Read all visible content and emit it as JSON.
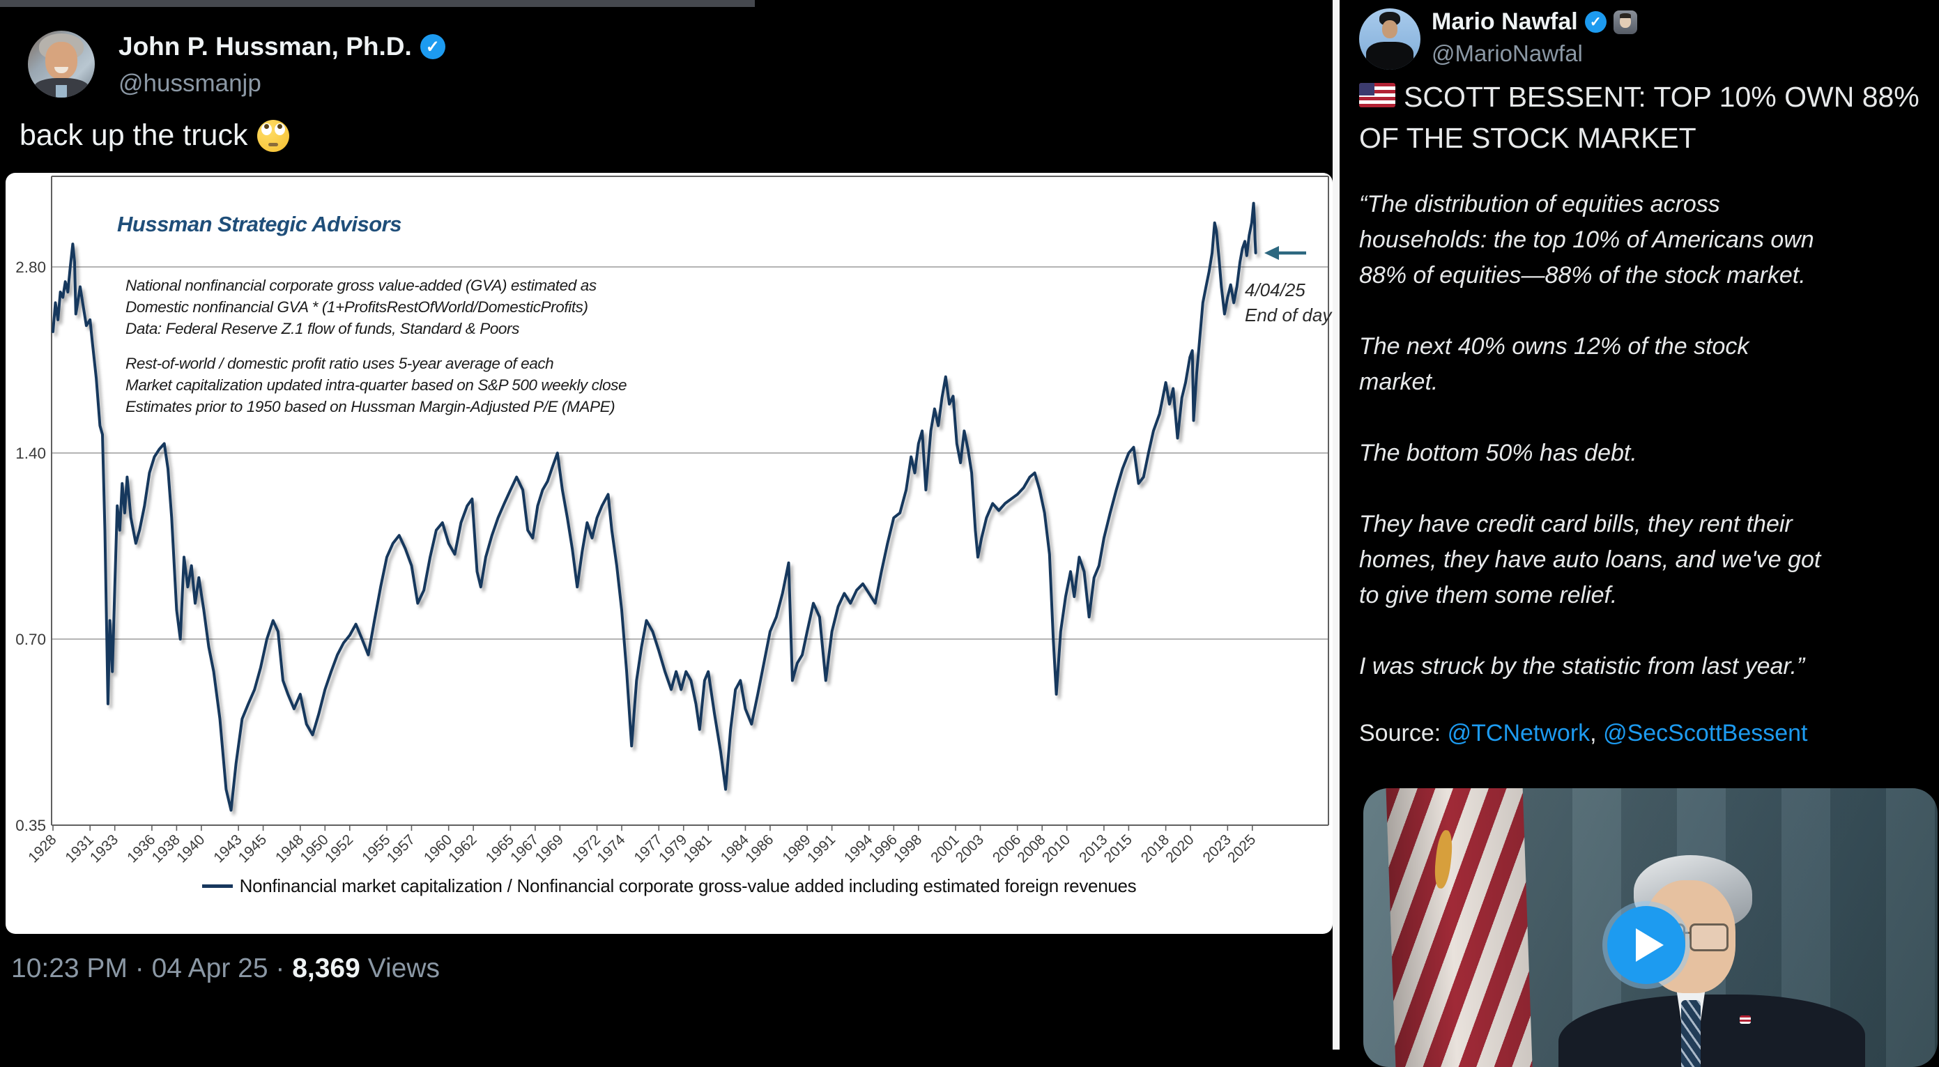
{
  "left_post": {
    "display_name": "John P. Hussman, Ph.D.",
    "handle": "@hussmanjp",
    "verified_mark": "✓",
    "text": "back up the truck",
    "emoji_name": "face-with-rolling-eyes",
    "meta": "10:23 PM · 04 Apr 25 · ",
    "views_count": "8,369",
    "views_label": " Views"
  },
  "chart": {
    "brand": "Hussman Strategic Advisors",
    "note1": "National nonfinancial corporate gross value-added (GVA) estimated as\nDomestic nonfinancial GVA * (1+ProfitsRestOfWorld/DomesticProfits)\nData: Federal Reserve Z.1 flow of funds, Standard & Poors",
    "note2": "Rest-of-world / domestic profit ratio uses 5-year average of each\nMarket capitalization updated intra-quarter based on S&P 500 weekly close\nEstimates prior to 1950 based on Hussman Margin-Adjusted P/E (MAPE)",
    "end_label": "4/04/25\nEnd of day",
    "legend": "Nonfinancial market capitalization / Nonfinancial corporate gross-value added including estimated foreign revenues",
    "chart_data": {
      "type": "line",
      "title": "Hussman Strategic Advisors",
      "xlabel": "",
      "ylabel": "",
      "scale": "log2",
      "grid": true,
      "legend_position": "bottom",
      "xlim": [
        1928,
        2025.4
      ],
      "ylim": [
        0.35,
        3.95
      ],
      "y_ticks": [
        2.8,
        1.4,
        0.7,
        0.35
      ],
      "y_tick_labels": [
        "2.80",
        "1.40",
        "0.70",
        "0.35"
      ],
      "x_ticks": [
        1928,
        1931,
        1933,
        1936,
        1938,
        1940,
        1943,
        1945,
        1948,
        1950,
        1952,
        1955,
        1957,
        1960,
        1962,
        1965,
        1967,
        1969,
        1972,
        1974,
        1977,
        1979,
        1981,
        1984,
        1986,
        1989,
        1991,
        1994,
        1996,
        1998,
        2001,
        2003,
        2006,
        2008,
        2010,
        2013,
        2015,
        2018,
        2020,
        2023,
        2025
      ],
      "annotation_date": "4/04/25",
      "annotation_note": "End of day",
      "series_name": "Nonfinancial market capitalization / Nonfinancial corporate gross-value added including estimated foreign revenues",
      "points": [
        [
          1928,
          2.2
        ],
        [
          1928.2,
          2.45
        ],
        [
          1928.4,
          2.3
        ],
        [
          1928.6,
          2.55
        ],
        [
          1928.8,
          2.5
        ],
        [
          1929,
          2.65
        ],
        [
          1929.2,
          2.55
        ],
        [
          1929.4,
          2.8
        ],
        [
          1929.6,
          3.05
        ],
        [
          1929.75,
          2.85
        ],
        [
          1929.85,
          2.35
        ],
        [
          1930,
          2.45
        ],
        [
          1930.2,
          2.6
        ],
        [
          1930.4,
          2.45
        ],
        [
          1930.7,
          2.25
        ],
        [
          1931,
          2.3
        ],
        [
          1931.2,
          2.1
        ],
        [
          1931.5,
          1.85
        ],
        [
          1931.8,
          1.55
        ],
        [
          1932,
          1.5
        ],
        [
          1932.2,
          1.05
        ],
        [
          1932.45,
          0.55
        ],
        [
          1932.6,
          0.75
        ],
        [
          1932.8,
          0.62
        ],
        [
          1933,
          0.85
        ],
        [
          1933.2,
          1.15
        ],
        [
          1933.4,
          1.05
        ],
        [
          1933.6,
          1.25
        ],
        [
          1933.8,
          1.12
        ],
        [
          1934,
          1.28
        ],
        [
          1934.3,
          1.1
        ],
        [
          1934.7,
          1.0
        ],
        [
          1935,
          1.05
        ],
        [
          1935.4,
          1.15
        ],
        [
          1935.8,
          1.3
        ],
        [
          1936.2,
          1.38
        ],
        [
          1936.6,
          1.42
        ],
        [
          1937,
          1.45
        ],
        [
          1937.3,
          1.32
        ],
        [
          1937.6,
          1.1
        ],
        [
          1938,
          0.78
        ],
        [
          1938.3,
          0.7
        ],
        [
          1938.6,
          0.95
        ],
        [
          1938.9,
          0.85
        ],
        [
          1939.2,
          0.92
        ],
        [
          1939.5,
          0.8
        ],
        [
          1939.8,
          0.88
        ],
        [
          1940.2,
          0.78
        ],
        [
          1940.6,
          0.68
        ],
        [
          1941,
          0.62
        ],
        [
          1941.5,
          0.52
        ],
        [
          1942,
          0.4
        ],
        [
          1942.4,
          0.37
        ],
        [
          1942.8,
          0.44
        ],
        [
          1943.3,
          0.52
        ],
        [
          1943.8,
          0.55
        ],
        [
          1944.3,
          0.58
        ],
        [
          1944.8,
          0.63
        ],
        [
          1945.3,
          0.7
        ],
        [
          1945.8,
          0.75
        ],
        [
          1946.2,
          0.72
        ],
        [
          1946.6,
          0.6
        ],
        [
          1947,
          0.57
        ],
        [
          1947.5,
          0.54
        ],
        [
          1948,
          0.57
        ],
        [
          1948.5,
          0.51
        ],
        [
          1949,
          0.49
        ],
        [
          1949.5,
          0.53
        ],
        [
          1950,
          0.58
        ],
        [
          1950.5,
          0.62
        ],
        [
          1951,
          0.66
        ],
        [
          1951.5,
          0.69
        ],
        [
          1952,
          0.71
        ],
        [
          1952.5,
          0.74
        ],
        [
          1953,
          0.7
        ],
        [
          1953.5,
          0.66
        ],
        [
          1954,
          0.75
        ],
        [
          1954.5,
          0.85
        ],
        [
          1955,
          0.95
        ],
        [
          1955.5,
          1.0
        ],
        [
          1956,
          1.03
        ],
        [
          1956.5,
          0.98
        ],
        [
          1957,
          0.92
        ],
        [
          1957.5,
          0.8
        ],
        [
          1958,
          0.84
        ],
        [
          1958.5,
          0.95
        ],
        [
          1959,
          1.05
        ],
        [
          1959.5,
          1.08
        ],
        [
          1960,
          1.0
        ],
        [
          1960.5,
          0.96
        ],
        [
          1961,
          1.08
        ],
        [
          1961.5,
          1.15
        ],
        [
          1961.9,
          1.18
        ],
        [
          1962.3,
          0.9
        ],
        [
          1962.6,
          0.85
        ],
        [
          1963,
          0.95
        ],
        [
          1963.5,
          1.03
        ],
        [
          1964,
          1.1
        ],
        [
          1964.5,
          1.16
        ],
        [
          1965,
          1.22
        ],
        [
          1965.5,
          1.28
        ],
        [
          1966,
          1.22
        ],
        [
          1966.4,
          1.05
        ],
        [
          1966.8,
          1.02
        ],
        [
          1967.2,
          1.15
        ],
        [
          1967.6,
          1.22
        ],
        [
          1968,
          1.26
        ],
        [
          1968.4,
          1.33
        ],
        [
          1968.8,
          1.4
        ],
        [
          1969.2,
          1.22
        ],
        [
          1969.6,
          1.1
        ],
        [
          1970,
          0.98
        ],
        [
          1970.4,
          0.85
        ],
        [
          1970.8,
          0.97
        ],
        [
          1971.2,
          1.08
        ],
        [
          1971.6,
          1.02
        ],
        [
          1972,
          1.1
        ],
        [
          1972.4,
          1.15
        ],
        [
          1972.9,
          1.2
        ],
        [
          1973.2,
          1.05
        ],
        [
          1973.6,
          0.92
        ],
        [
          1974,
          0.78
        ],
        [
          1974.4,
          0.62
        ],
        [
          1974.8,
          0.47
        ],
        [
          1975.2,
          0.6
        ],
        [
          1975.6,
          0.68
        ],
        [
          1976,
          0.75
        ],
        [
          1976.5,
          0.72
        ],
        [
          1977,
          0.67
        ],
        [
          1977.5,
          0.62
        ],
        [
          1978,
          0.58
        ],
        [
          1978.4,
          0.62
        ],
        [
          1978.8,
          0.58
        ],
        [
          1979.2,
          0.62
        ],
        [
          1979.6,
          0.6
        ],
        [
          1980,
          0.55
        ],
        [
          1980.3,
          0.5
        ],
        [
          1980.7,
          0.6
        ],
        [
          1981,
          0.62
        ],
        [
          1981.5,
          0.53
        ],
        [
          1982,
          0.46
        ],
        [
          1982.4,
          0.4
        ],
        [
          1982.8,
          0.5
        ],
        [
          1983.2,
          0.58
        ],
        [
          1983.6,
          0.6
        ],
        [
          1984,
          0.54
        ],
        [
          1984.5,
          0.51
        ],
        [
          1985,
          0.57
        ],
        [
          1985.5,
          0.64
        ],
        [
          1986,
          0.72
        ],
        [
          1986.5,
          0.76
        ],
        [
          1987,
          0.83
        ],
        [
          1987.5,
          0.93
        ],
        [
          1987.8,
          0.6
        ],
        [
          1988.2,
          0.64
        ],
        [
          1988.6,
          0.66
        ],
        [
          1989,
          0.72
        ],
        [
          1989.5,
          0.8
        ],
        [
          1990,
          0.76
        ],
        [
          1990.5,
          0.6
        ],
        [
          1991,
          0.72
        ],
        [
          1991.5,
          0.79
        ],
        [
          1992,
          0.83
        ],
        [
          1992.5,
          0.8
        ],
        [
          1993,
          0.84
        ],
        [
          1993.5,
          0.86
        ],
        [
          1994,
          0.83
        ],
        [
          1994.5,
          0.8
        ],
        [
          1995,
          0.9
        ],
        [
          1995.5,
          1.0
        ],
        [
          1996,
          1.1
        ],
        [
          1996.5,
          1.12
        ],
        [
          1997,
          1.22
        ],
        [
          1997.4,
          1.38
        ],
        [
          1997.7,
          1.3
        ],
        [
          1998,
          1.45
        ],
        [
          1998.3,
          1.52
        ],
        [
          1998.6,
          1.22
        ],
        [
          1999,
          1.52
        ],
        [
          1999.3,
          1.65
        ],
        [
          1999.6,
          1.55
        ],
        [
          1999.9,
          1.72
        ],
        [
          2000.2,
          1.86
        ],
        [
          2000.5,
          1.68
        ],
        [
          2000.8,
          1.73
        ],
        [
          2001.1,
          1.45
        ],
        [
          2001.4,
          1.35
        ],
        [
          2001.7,
          1.52
        ],
        [
          2002,
          1.42
        ],
        [
          2002.3,
          1.3
        ],
        [
          2002.6,
          1.05
        ],
        [
          2002.8,
          0.95
        ],
        [
          2003.1,
          1.02
        ],
        [
          2003.5,
          1.1
        ],
        [
          2004,
          1.16
        ],
        [
          2004.5,
          1.13
        ],
        [
          2005,
          1.16
        ],
        [
          2005.5,
          1.18
        ],
        [
          2006,
          1.2
        ],
        [
          2006.5,
          1.23
        ],
        [
          2007,
          1.28
        ],
        [
          2007.4,
          1.3
        ],
        [
          2007.8,
          1.22
        ],
        [
          2008.2,
          1.12
        ],
        [
          2008.6,
          0.96
        ],
        [
          2008.9,
          0.7
        ],
        [
          2009.15,
          0.57
        ],
        [
          2009.5,
          0.72
        ],
        [
          2009.9,
          0.82
        ],
        [
          2010.3,
          0.9
        ],
        [
          2010.6,
          0.82
        ],
        [
          2011,
          0.95
        ],
        [
          2011.4,
          0.9
        ],
        [
          2011.8,
          0.76
        ],
        [
          2012.2,
          0.88
        ],
        [
          2012.6,
          0.92
        ],
        [
          2013,
          1.02
        ],
        [
          2013.5,
          1.12
        ],
        [
          2014,
          1.22
        ],
        [
          2014.5,
          1.32
        ],
        [
          2015,
          1.4
        ],
        [
          2015.4,
          1.43
        ],
        [
          2015.8,
          1.25
        ],
        [
          2016.2,
          1.28
        ],
        [
          2016.6,
          1.4
        ],
        [
          2017,
          1.52
        ],
        [
          2017.5,
          1.62
        ],
        [
          2018,
          1.82
        ],
        [
          2018.3,
          1.68
        ],
        [
          2018.6,
          1.78
        ],
        [
          2018.95,
          1.48
        ],
        [
          2019.3,
          1.72
        ],
        [
          2019.6,
          1.82
        ],
        [
          2019.95,
          2.0
        ],
        [
          2020.15,
          2.05
        ],
        [
          2020.25,
          1.58
        ],
        [
          2020.5,
          1.88
        ],
        [
          2020.75,
          2.15
        ],
        [
          2021,
          2.45
        ],
        [
          2021.25,
          2.6
        ],
        [
          2021.5,
          2.75
        ],
        [
          2021.75,
          2.95
        ],
        [
          2021.95,
          3.3
        ],
        [
          2022.1,
          3.2
        ],
        [
          2022.3,
          2.9
        ],
        [
          2022.5,
          2.6
        ],
        [
          2022.75,
          2.35
        ],
        [
          2023,
          2.5
        ],
        [
          2023.25,
          2.62
        ],
        [
          2023.5,
          2.45
        ],
        [
          2023.75,
          2.6
        ],
        [
          2024,
          2.85
        ],
        [
          2024.2,
          3.0
        ],
        [
          2024.4,
          3.08
        ],
        [
          2024.55,
          2.92
        ],
        [
          2024.75,
          3.15
        ],
        [
          2024.95,
          3.3
        ],
        [
          2025.1,
          3.55
        ],
        [
          2025.17,
          3.35
        ],
        [
          2025.22,
          3.1
        ],
        [
          2025.27,
          2.95
        ]
      ]
    }
  },
  "right_post": {
    "display_name": "Mario Nawfal",
    "handle": "@MarioNawfal",
    "verified_mark": "✓",
    "flag_emoji_name": "us-flag-emoji",
    "headline": "SCOTT BESSENT: TOP 10% OWN 88%\nOF THE STOCK MARKET",
    "paragraphs": [
      "“The distribution of equities across\nhouseholds: the top 10% of Americans own\n88% of equities—88% of the stock market.",
      "The next 40% owns 12% of the stock\nmarket.",
      "The bottom 50% has debt.",
      "They have credit card bills, they rent their\nhomes, they have auto loans, and we've got\nto give them some relief.",
      "I was struck by the statistic from last year.”"
    ],
    "source_label": "Source: ",
    "source_link1": "@TCNetwork",
    "source_separator": ", ",
    "source_link2": "@SecScottBessent"
  },
  "colors": {
    "accent_blue": "#1d9bf0",
    "line_navy": "#17375d",
    "brand_navy": "#1f4e79",
    "grid_gray": "#9b9b9b",
    "axis_gray": "#606060",
    "handle_gray": "#8b98a5",
    "text_light": "#e7e9ea",
    "arrow_teal": "#2d6880",
    "chart_bg": "#ffffff"
  }
}
